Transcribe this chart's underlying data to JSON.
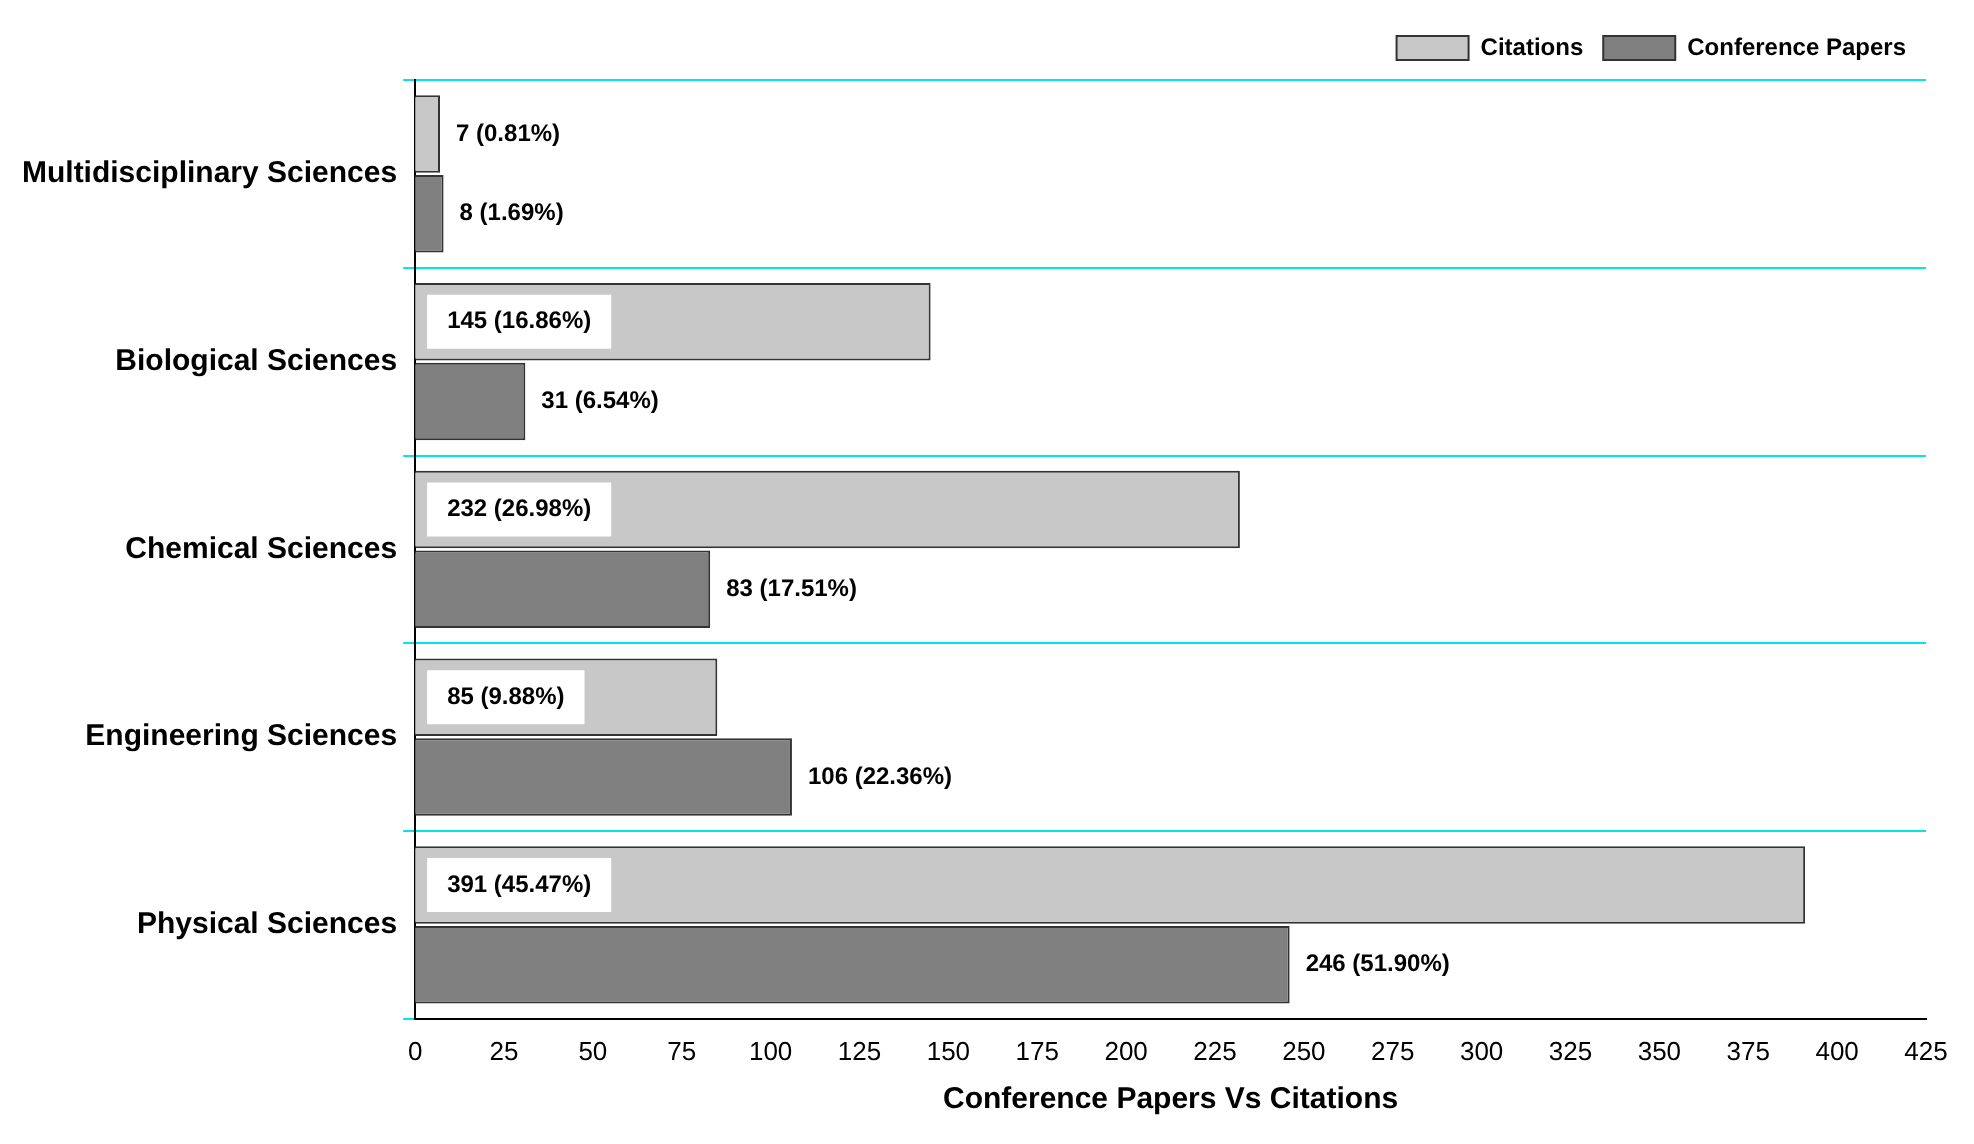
{
  "chart_data": {
    "type": "bar",
    "orientation": "horizontal",
    "xlabel": "Conference Papers Vs Citations",
    "categories": [
      "Multidisciplinary Sciences",
      "Biological Sciences",
      "Chemical Sciences",
      "Engineering Sciences",
      "Physical Sciences"
    ],
    "series": [
      {
        "name": "Citations",
        "color": "#c8c8c8",
        "values": [
          7,
          145,
          232,
          85,
          391
        ],
        "value_labels": [
          "7 (0.81%)",
          "145 (16.86%)",
          "232 (26.98%)",
          "85 (9.88%)",
          "391 (45.47%)"
        ]
      },
      {
        "name": "Conference Papers",
        "color": "#808080",
        "values": [
          8,
          31,
          83,
          106,
          246
        ],
        "value_labels": [
          "8 (1.69%)",
          "31 (6.54%)",
          "83 (17.51%)",
          "106 (22.36%)",
          "246 (51.90%)"
        ]
      }
    ],
    "xlim": [
      0,
      425
    ],
    "xticks": [
      0,
      25,
      50,
      75,
      100,
      125,
      150,
      175,
      200,
      225,
      250,
      275,
      300,
      325,
      350,
      375,
      400,
      425
    ],
    "grid": "y",
    "legend": "top right"
  }
}
